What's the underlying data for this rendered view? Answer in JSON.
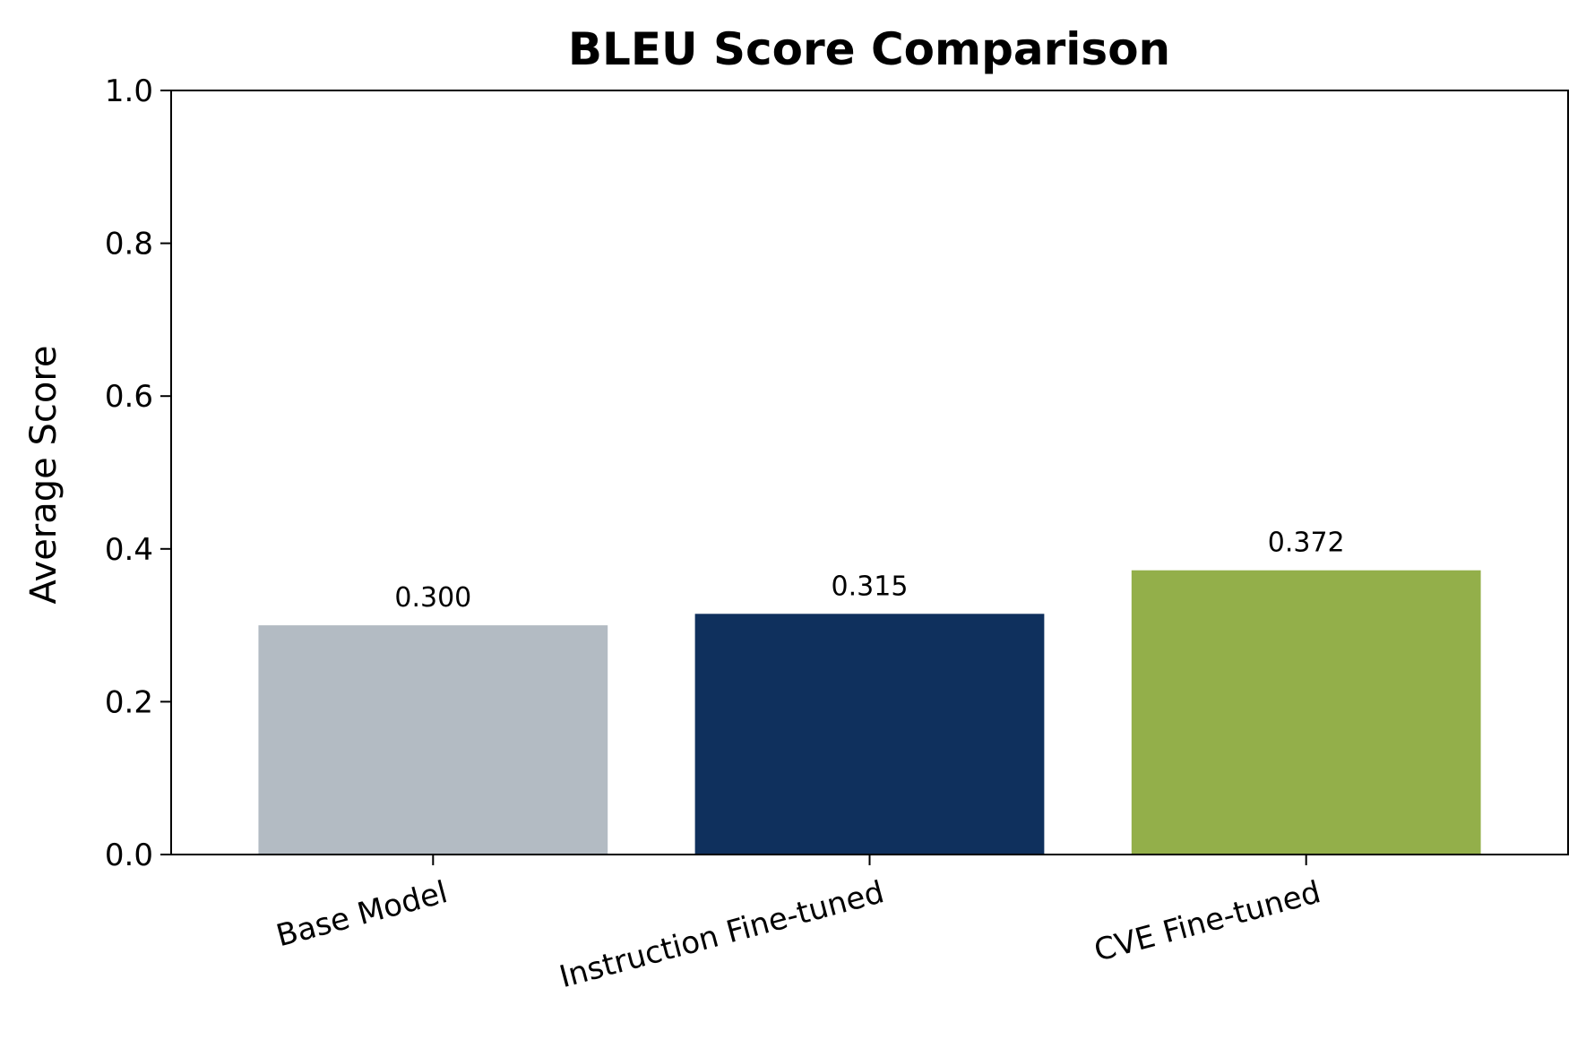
{
  "chart_data": {
    "type": "bar",
    "title": "BLEU Score Comparison",
    "xlabel": "",
    "ylabel": "Average Score",
    "ylim": [
      0,
      1.0
    ],
    "yticks": [
      "0.0",
      "0.2",
      "0.4",
      "0.6",
      "0.8",
      "1.0"
    ],
    "categories": [
      "Base Model",
      "Instruction Fine-tuned",
      "CVE Fine-tuned"
    ],
    "values": [
      0.3,
      0.315,
      0.372
    ],
    "value_labels": [
      "0.300",
      "0.315",
      "0.372"
    ],
    "colors": [
      "#b3bbc3",
      "#0f305d",
      "#93af4a"
    ],
    "grid": false,
    "legend": "none"
  }
}
